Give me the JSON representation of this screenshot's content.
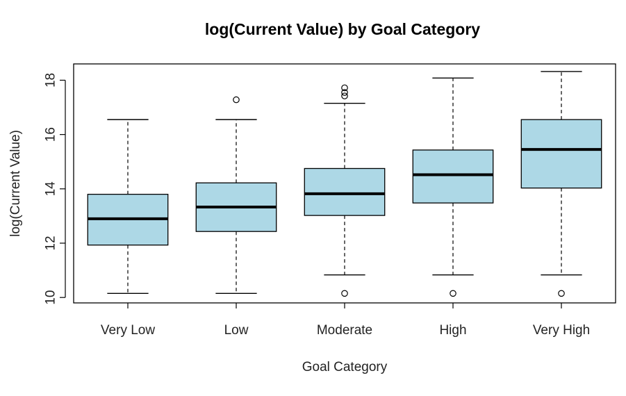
{
  "chart_data": {
    "type": "boxplot",
    "title": "log(Current Value) by Goal Category",
    "xlabel": "Goal Category",
    "ylabel": "log(Current Value)",
    "ylim": [
      9.8,
      18.6
    ],
    "yticks": [
      10,
      12,
      14,
      16,
      18
    ],
    "box_color": "#add8e6",
    "categories": [
      "Very Low",
      "Low",
      "Moderate",
      "High",
      "Very High"
    ],
    "boxes": [
      {
        "category": "Very Low",
        "whisker_low": 10.15,
        "q1": 11.93,
        "median": 12.9,
        "q3": 13.8,
        "whisker_high": 16.55,
        "outliers": []
      },
      {
        "category": "Low",
        "whisker_low": 10.15,
        "q1": 12.43,
        "median": 13.33,
        "q3": 14.22,
        "whisker_high": 16.55,
        "outliers": [
          17.28
        ]
      },
      {
        "category": "Moderate",
        "whisker_low": 10.83,
        "q1": 13.02,
        "median": 13.82,
        "q3": 14.75,
        "whisker_high": 17.15,
        "outliers": [
          10.15,
          17.42,
          17.55,
          17.72
        ]
      },
      {
        "category": "High",
        "whisker_low": 10.83,
        "q1": 13.48,
        "median": 14.52,
        "q3": 15.43,
        "whisker_high": 18.08,
        "outliers": [
          10.15
        ]
      },
      {
        "category": "Very High",
        "whisker_low": 10.83,
        "q1": 14.03,
        "median": 15.45,
        "q3": 16.55,
        "whisker_high": 18.32,
        "outliers": [
          10.15
        ]
      }
    ]
  }
}
